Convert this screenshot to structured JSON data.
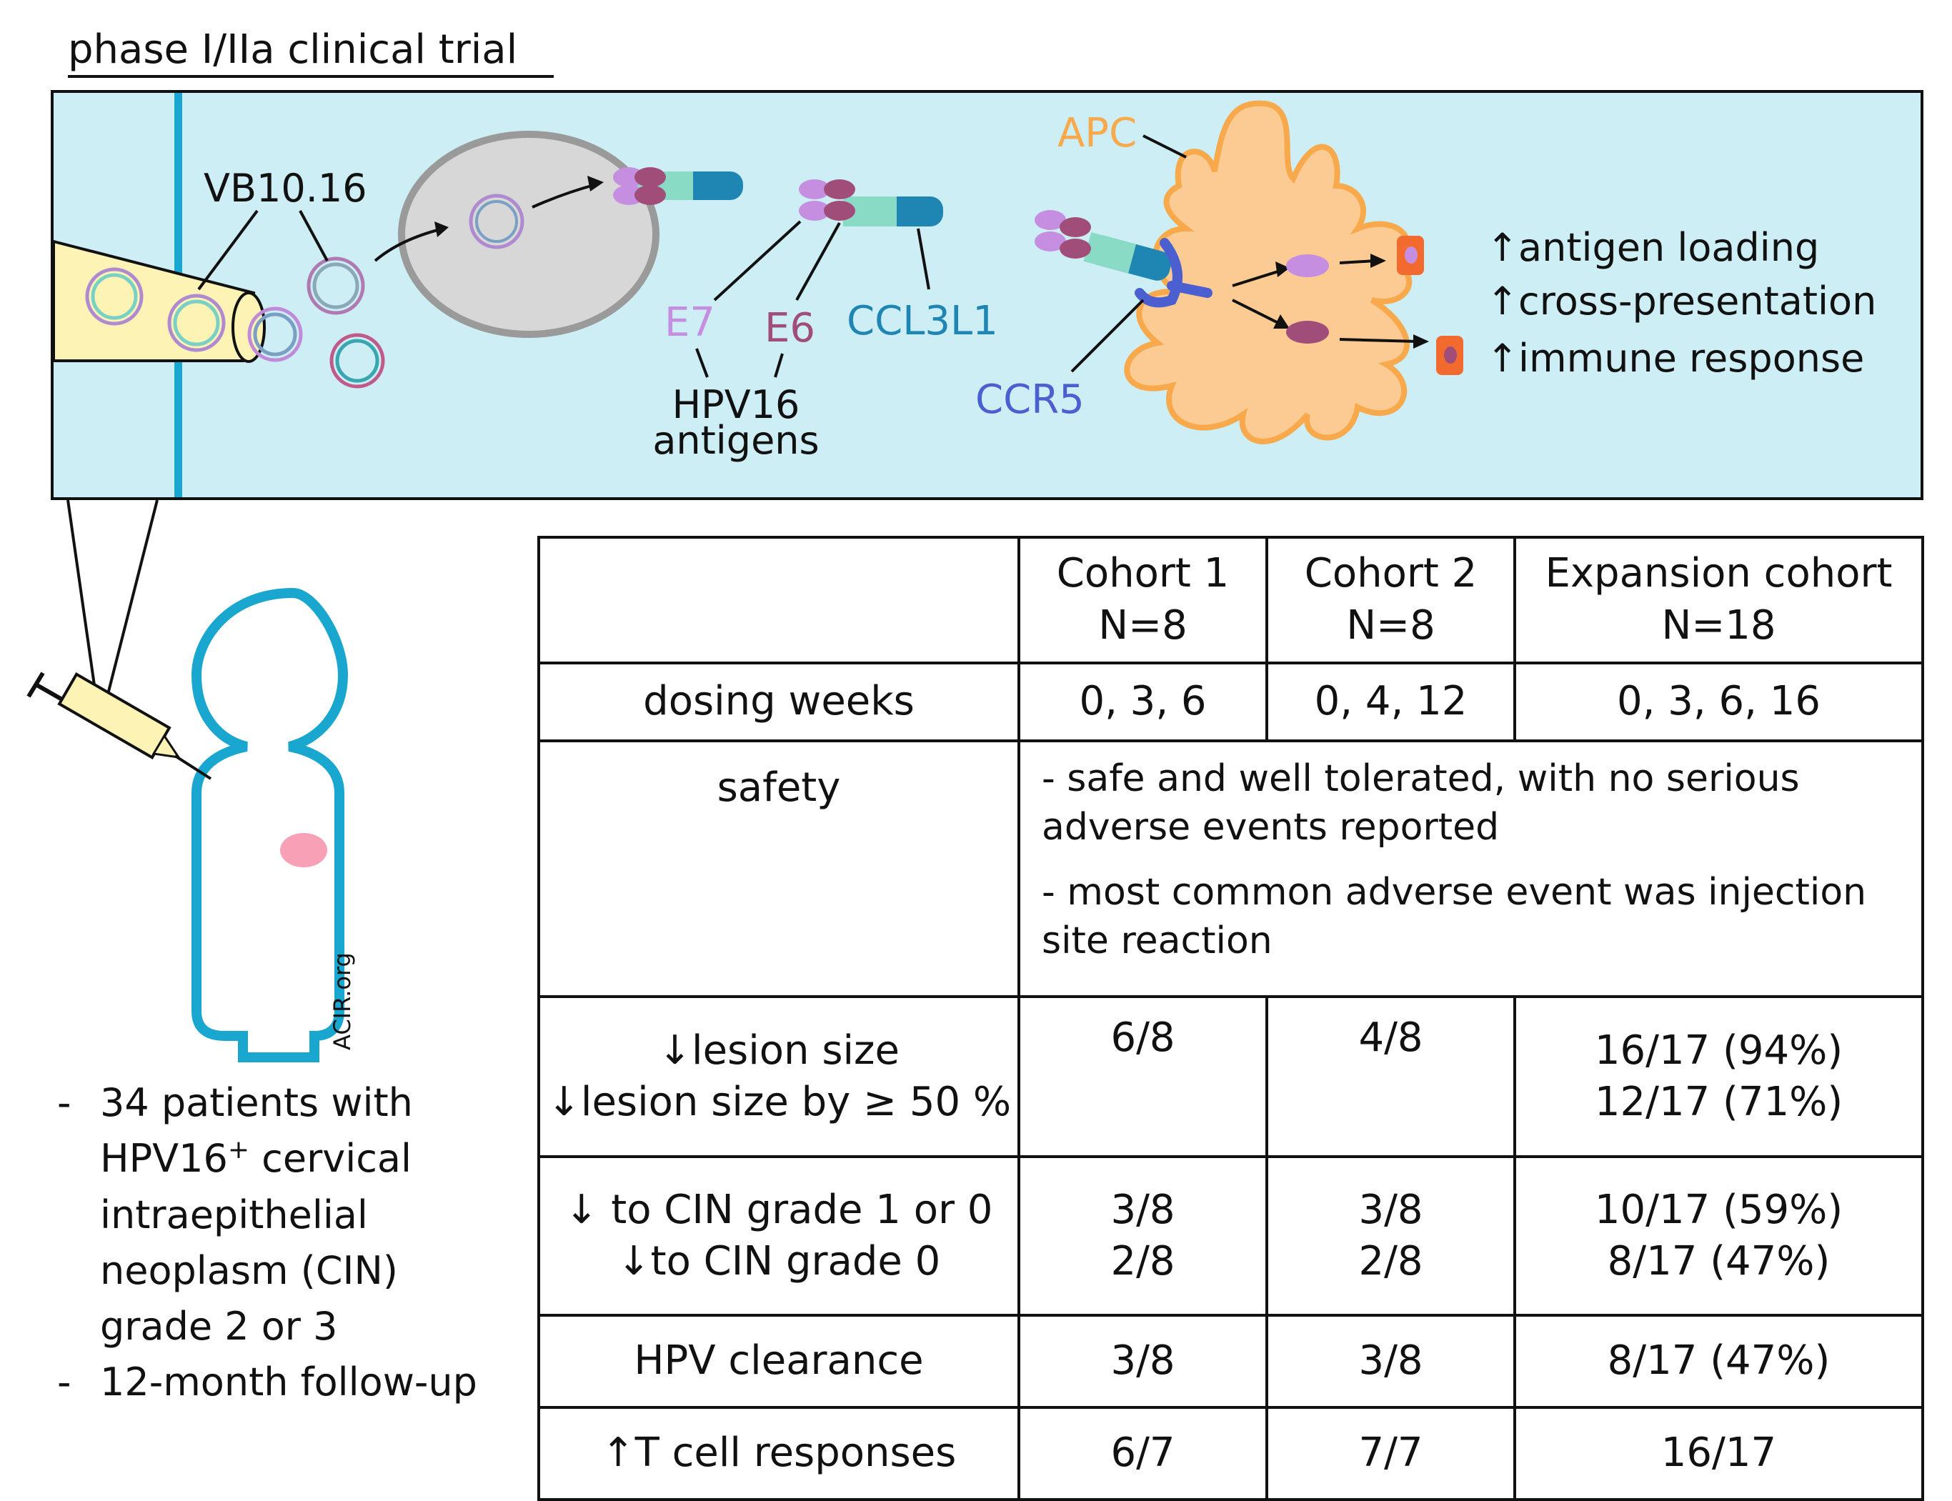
{
  "title": "phase I/IIa clinical trial",
  "mechanism": {
    "vaccine_label": "VB10.16",
    "antigen_labels": {
      "e7": "E7",
      "e6": "E6",
      "ccl3l1": "CCL3L1"
    },
    "antigen_group_line1": "HPV16",
    "antigen_group_line2": "antigens",
    "apc_label": "APC",
    "receptor_label": "CCR5",
    "effects": [
      "antigen loading",
      "cross-presentation",
      "immune response"
    ],
    "effect_arrow": "↑",
    "credit": "ACIR.org",
    "colors": {
      "panel_bg": "#cdeef4",
      "panel_stripe": "#1aa7cf",
      "apc": "#fccb94",
      "apc_label": "#f7a94b",
      "e7": "#c58ee0",
      "e6": "#a04d7a",
      "ccl3l1": "#1f86b3",
      "ccr5": "#4b5fd0",
      "body_outline": "#1aa7cf"
    }
  },
  "patients": {
    "items": [
      {
        "main": "34 patients with HPV16",
        "sup": "+",
        "rest": " cervical intraepithelial neoplasm (CIN) grade 2 or 3"
      },
      {
        "main": "12-month follow-up",
        "sup": "",
        "rest": ""
      }
    ],
    "line1a": "34 patients with",
    "line2a": "HPV16",
    "line2sup": "+",
    "line2b": " cervical",
    "line3": "intraepithelial",
    "line4": "neoplasm (CIN)",
    "line5": "grade 2 or 3",
    "line6": "12-month follow-up"
  },
  "table": {
    "columns": [
      {
        "name": "Cohort 1",
        "n": "N=8"
      },
      {
        "name": "Cohort 2",
        "n": "N=8"
      },
      {
        "name": "Expansion cohort",
        "n": "N=18"
      }
    ],
    "dosing": {
      "label": "dosing weeks",
      "values": [
        "0, 3, 6",
        "0, 4, 12",
        "0, 3, 6, 16"
      ]
    },
    "safety": {
      "label": "safety",
      "bullets": [
        "- safe and well tolerated, with no serious adverse events reported",
        "- most common adverse event was injection site reaction"
      ]
    },
    "lesion": {
      "label1": "↓lesion size",
      "label2": "↓lesion size by ≥ 50 %",
      "c1": "6/8",
      "c2": "4/8",
      "c3a": "16/17 (94%)",
      "c3b": "12/17 (71%)"
    },
    "cin": {
      "label1": "↓ to CIN grade 1 or 0",
      "label2": "↓to CIN grade 0",
      "c1a": "3/8",
      "c1b": "2/8",
      "c2a": "3/8",
      "c2b": "2/8",
      "c3a": "10/17 (59%)",
      "c3b": "8/17 (47%)"
    },
    "hpv": {
      "label": "HPV clearance",
      "values": [
        "3/8",
        "3/8",
        "8/17 (47%)"
      ]
    },
    "tcell": {
      "label": "↑T cell responses",
      "values": [
        "6/7",
        "7/7",
        "16/17"
      ]
    }
  }
}
